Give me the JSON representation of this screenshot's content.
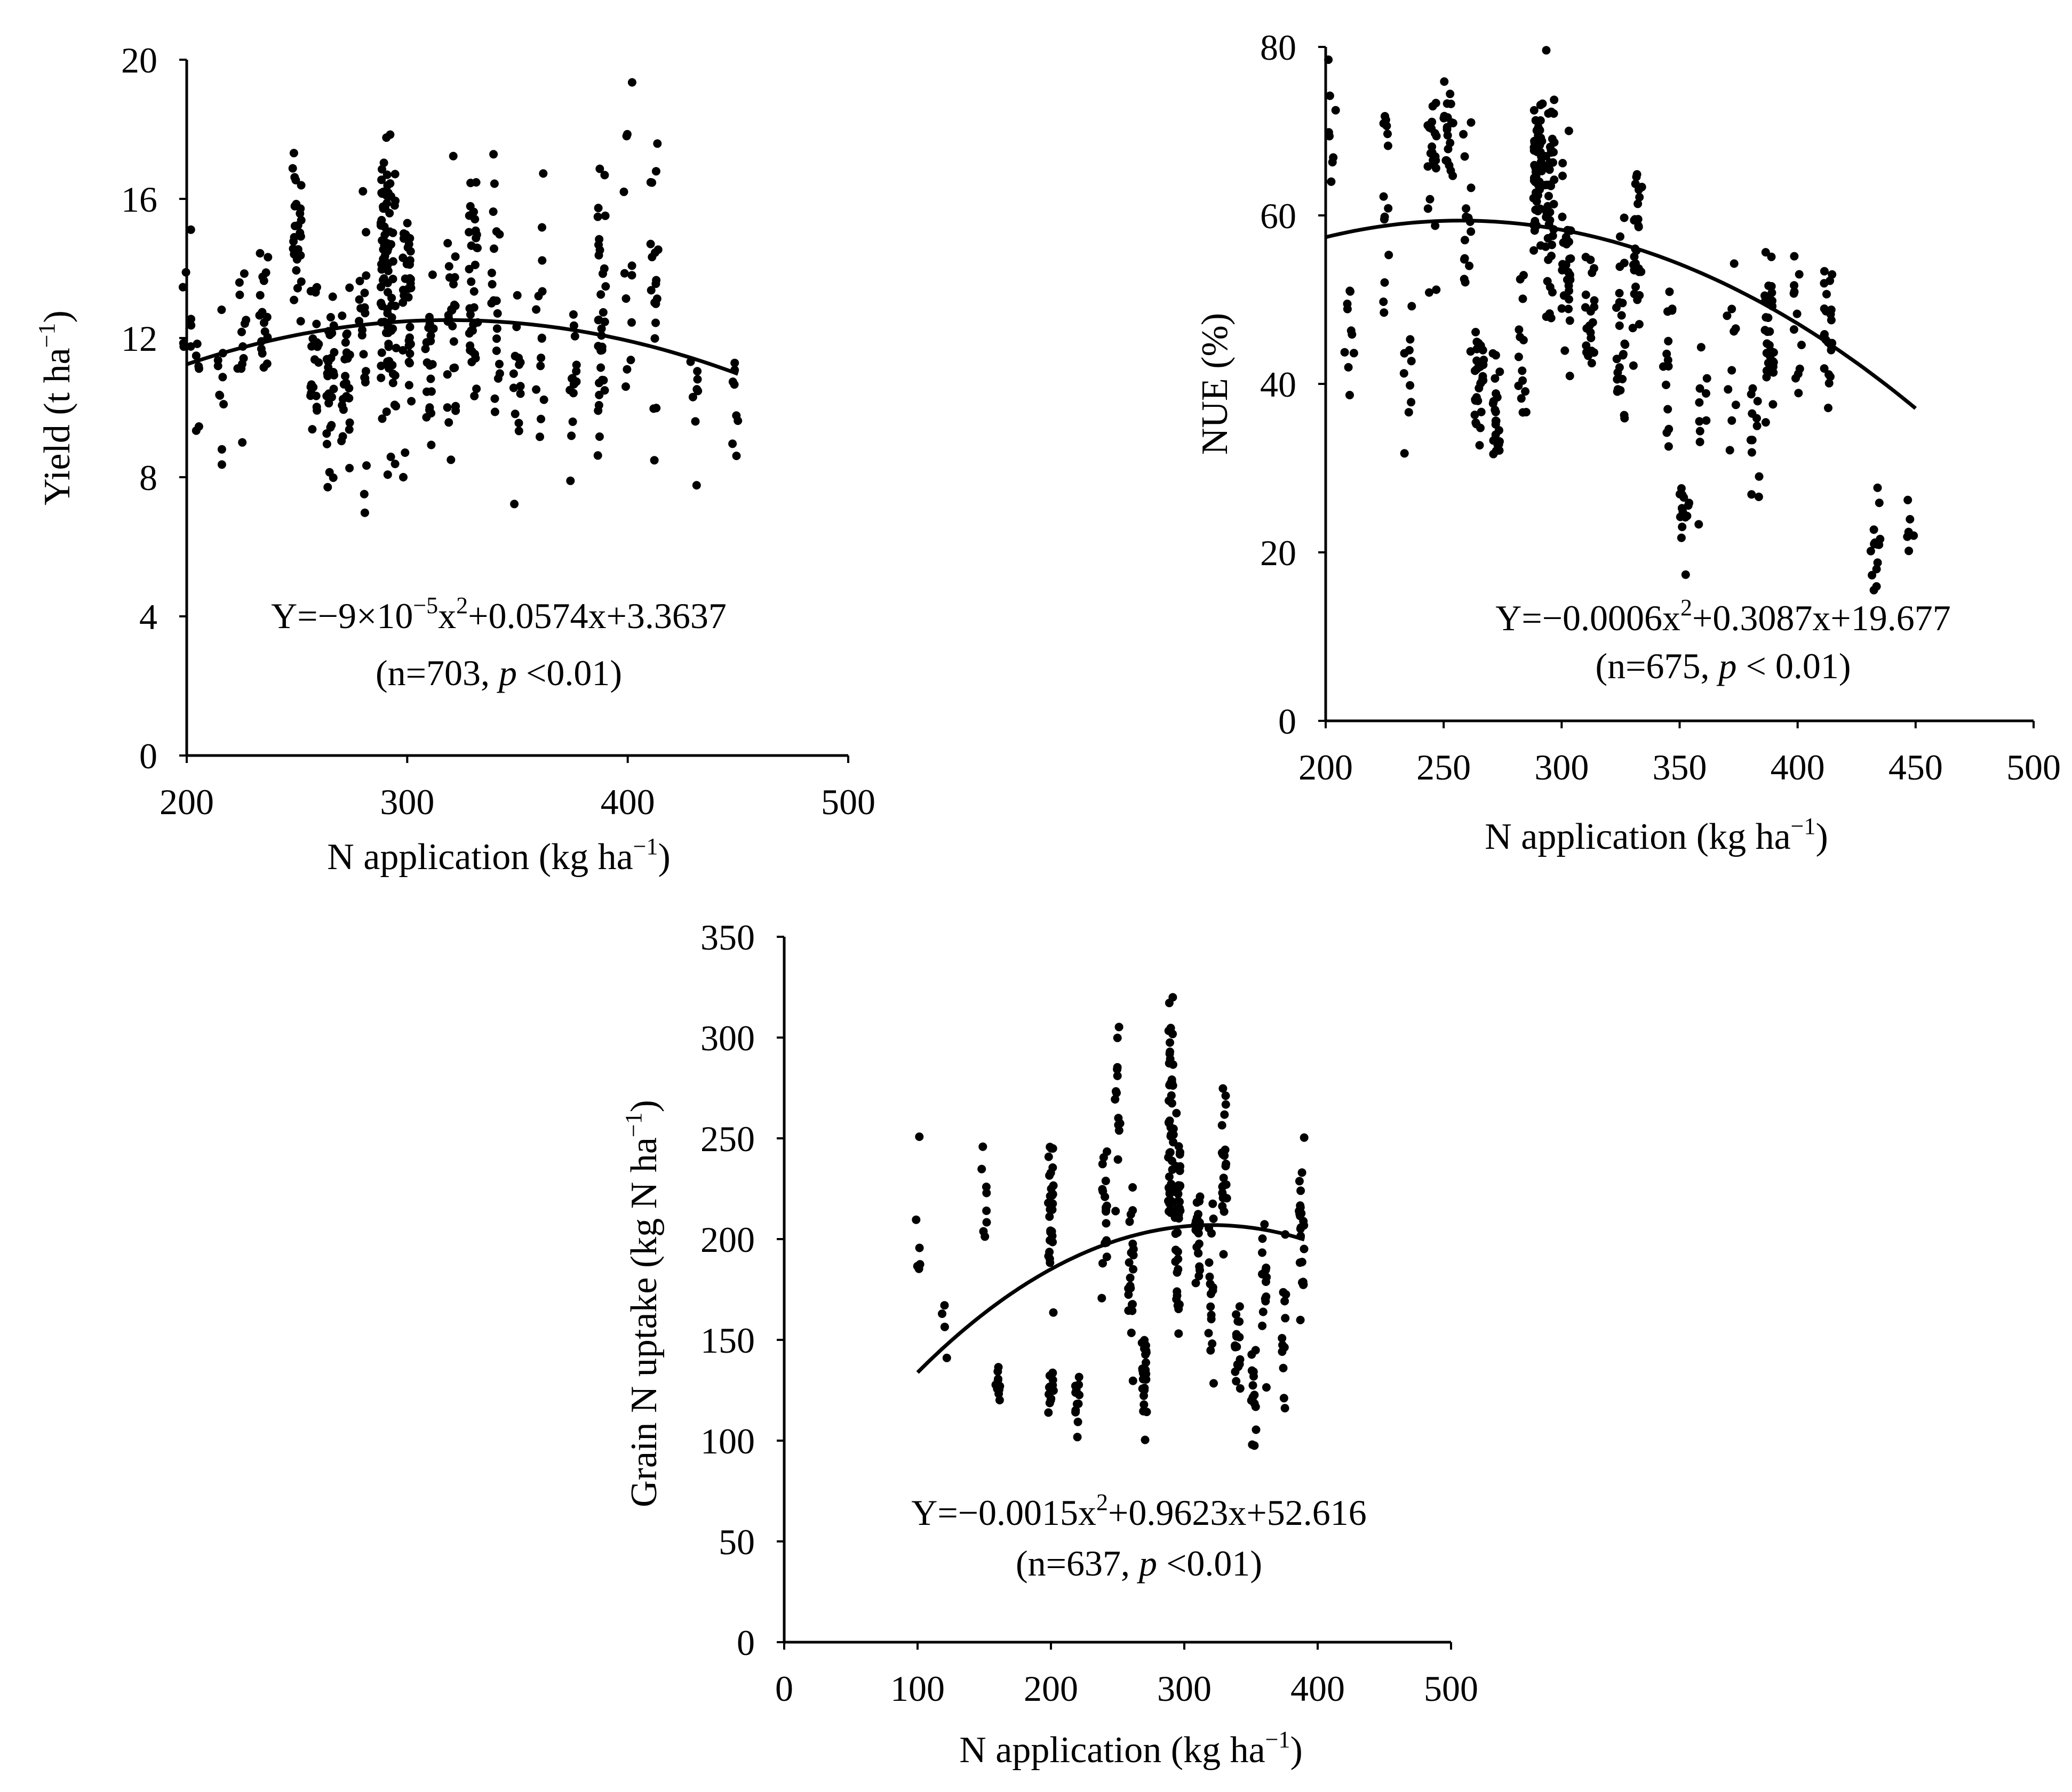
{
  "chart_data": [
    {
      "id": "yield",
      "type": "scatter",
      "title": "",
      "xlabel": {
        "main": "N application (kg ha",
        "sup": "−1",
        "close": ")"
      },
      "ylabel": {
        "main": "Yield (t ha",
        "sup": "−1",
        "close": ")"
      },
      "xlim": [
        200,
        500
      ],
      "ylim": [
        0,
        20
      ],
      "xticks": [
        "200",
        "300",
        "400",
        "500"
      ],
      "yticks": [
        "0",
        "4",
        "8",
        "12",
        "16",
        "20"
      ],
      "fit": {
        "a": -9e-05,
        "b": 0.0574,
        "c": 3.3637,
        "x_range": [
          200,
          450
        ]
      },
      "equation": {
        "pre": "Y=−9×10",
        "sup1": "−5",
        "mid": "x",
        "sup2": "2",
        "post": "+0.0574x+3.3637"
      },
      "stats": {
        "open": "(n=703,  ",
        "p": "p",
        "close": " <0.01)"
      },
      "points_note": "703 observations; representative scatter",
      "n_points": 703,
      "clusters": [
        [
          200,
          12.5,
          1.4,
          8
        ],
        [
          205,
          10.8,
          0.8,
          6
        ],
        [
          215,
          10.6,
          1.2,
          10
        ],
        [
          225,
          11.5,
          1.9,
          12
        ],
        [
          235,
          12.6,
          1.4,
          18
        ],
        [
          250,
          15.2,
          1.2,
          26
        ],
        [
          258,
          11.8,
          1.6,
          22
        ],
        [
          265,
          10.6,
          1.2,
          30
        ],
        [
          272,
          10.4,
          1.1,
          24
        ],
        [
          280,
          12.2,
          1.8,
          20
        ],
        [
          290,
          14.2,
          1.8,
          50
        ],
        [
          293,
          12.6,
          2.6,
          40
        ],
        [
          300,
          13.0,
          2.2,
          36
        ],
        [
          310,
          11.2,
          1.3,
          20
        ],
        [
          320,
          12.2,
          1.8,
          24
        ],
        [
          330,
          13.3,
          1.9,
          34
        ],
        [
          340,
          12.9,
          2.0,
          20
        ],
        [
          350,
          10.9,
          1.6,
          14
        ],
        [
          360,
          12.4,
          2.0,
          14
        ],
        [
          375,
          10.4,
          1.7,
          14
        ],
        [
          388,
          12.5,
          2.0,
          34
        ],
        [
          400,
          14.4,
          2.3,
          12
        ],
        [
          412,
          13.6,
          2.2,
          20
        ],
        [
          430,
          9.5,
          1.4,
          8
        ],
        [
          448,
          9.9,
          1.2,
          8
        ]
      ]
    },
    {
      "id": "nue",
      "type": "scatter",
      "title": "",
      "xlabel": {
        "main": "N application (kg ha",
        "sup": "−1",
        "close": ")"
      },
      "ylabel": {
        "main": "NUE (%)",
        "sup": "",
        "close": ""
      },
      "xlim": [
        200,
        500
      ],
      "ylim": [
        0,
        80
      ],
      "xticks": [
        "200",
        "250",
        "300",
        "350",
        "400",
        "450",
        "500"
      ],
      "yticks": [
        "0",
        "20",
        "40",
        "60",
        "80"
      ],
      "fit": {
        "a": -0.0006,
        "b": 0.3087,
        "c": 19.677,
        "x_range": [
          200,
          450
        ]
      },
      "equation": {
        "pre": "Y=−0.0006x",
        "sup1": "2",
        "mid": "+0.3087x+19.677",
        "sup2": "",
        "post": ""
      },
      "stats": {
        "open": "(n=675, ",
        "p": "p",
        "close": " < 0.01)"
      },
      "points_note": "675 observations; representative scatter",
      "n_points": 675,
      "clusters": [
        [
          203,
          70,
          3,
          8
        ],
        [
          210,
          47,
          5,
          10
        ],
        [
          225,
          62,
          8,
          14
        ],
        [
          235,
          42,
          5,
          10
        ],
        [
          245,
          66,
          6,
          24
        ],
        [
          252,
          71,
          5,
          20
        ],
        [
          260,
          55,
          8,
          16
        ],
        [
          265,
          40,
          3,
          30
        ],
        [
          272,
          37,
          3,
          22
        ],
        [
          283,
          44,
          6,
          14
        ],
        [
          290,
          67,
          5,
          54
        ],
        [
          295,
          61,
          8,
          44
        ],
        [
          302,
          56,
          7,
          30
        ],
        [
          312,
          48,
          5,
          20
        ],
        [
          325,
          45,
          7,
          24
        ],
        [
          332,
          57,
          6,
          30
        ],
        [
          345,
          40,
          7,
          14
        ],
        [
          352,
          25,
          4,
          16
        ],
        [
          360,
          38,
          5,
          10
        ],
        [
          372,
          44,
          6,
          10
        ],
        [
          382,
          33,
          4,
          12
        ],
        [
          388,
          46,
          5,
          34
        ],
        [
          400,
          46,
          6,
          12
        ],
        [
          413,
          46,
          5,
          22
        ],
        [
          433,
          21,
          3,
          14
        ],
        [
          448,
          23,
          2,
          6
        ]
      ]
    },
    {
      "id": "grain",
      "type": "scatter",
      "title": "",
      "xlabel": {
        "main": "N application (kg ha",
        "sup": "−1",
        "close": ")"
      },
      "ylabel": {
        "main": "Grain N uptake  (kg N ha",
        "sup": "−1",
        "close": ")"
      },
      "xlim": [
        0,
        500
      ],
      "ylim": [
        0,
        350
      ],
      "xticks": [
        "0",
        "100",
        "200",
        "300",
        "400",
        "500"
      ],
      "yticks": [
        "0",
        "50",
        "100",
        "150",
        "200",
        "250",
        "300",
        "350"
      ],
      "fit": {
        "a": -0.0015,
        "b": 0.9623,
        "c": 52.616,
        "x_range": [
          100,
          390
        ]
      },
      "equation": {
        "pre": "Y=−0.0015x",
        "sup1": "2",
        "mid": "+0.9623x+52.616",
        "sup2": "",
        "post": ""
      },
      "stats": {
        "open": "(n=637, ",
        "p": "p",
        "close": " <0.01)"
      },
      "points_note": "637 observations; representative scatter",
      "n_points": 637,
      "clusters": [
        [
          100,
          195,
          28,
          6
        ],
        [
          120,
          148,
          15,
          4
        ],
        [
          150,
          218,
          14,
          8
        ],
        [
          160,
          127,
          6,
          10
        ],
        [
          200,
          210,
          25,
          28
        ],
        [
          200,
          125,
          8,
          14
        ],
        [
          220,
          125,
          12,
          12
        ],
        [
          240,
          212,
          22,
          18
        ],
        [
          250,
          265,
          22,
          14
        ],
        [
          260,
          180,
          30,
          22
        ],
        [
          270,
          128,
          12,
          26
        ],
        [
          290,
          250,
          30,
          50
        ],
        [
          295,
          205,
          25,
          40
        ],
        [
          310,
          200,
          18,
          20
        ],
        [
          320,
          175,
          25,
          18
        ],
        [
          330,
          240,
          22,
          22
        ],
        [
          340,
          148,
          16,
          18
        ],
        [
          352,
          120,
          15,
          14
        ],
        [
          360,
          180,
          25,
          14
        ],
        [
          375,
          150,
          30,
          12
        ],
        [
          388,
          205,
          20,
          24
        ]
      ]
    }
  ]
}
